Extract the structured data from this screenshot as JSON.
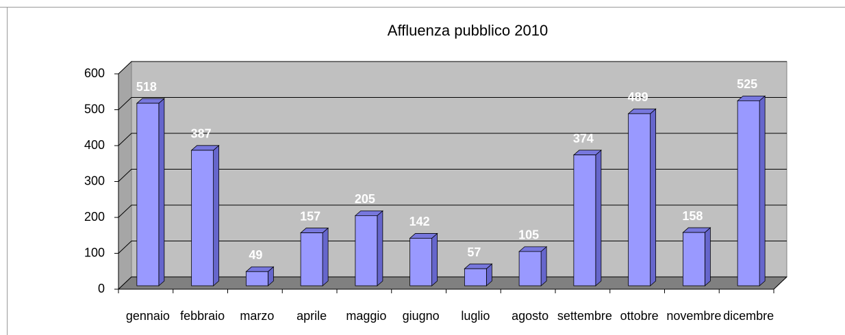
{
  "chart_data": {
    "type": "bar",
    "title": "Affluenza pubblico 2010",
    "categories": [
      "gennaio",
      "febbraio",
      "marzo",
      "aprile",
      "maggio",
      "giugno",
      "luglio",
      "agosto",
      "settembre",
      "ottobre",
      "novembre",
      "dicembre"
    ],
    "values": [
      518,
      387,
      49,
      157,
      205,
      142,
      57,
      105,
      374,
      489,
      158,
      525
    ],
    "color": "#9999ff",
    "ylim": [
      0,
      600
    ],
    "yticks": [
      0,
      100,
      200,
      300,
      400,
      500,
      600
    ],
    "grid": true
  }
}
